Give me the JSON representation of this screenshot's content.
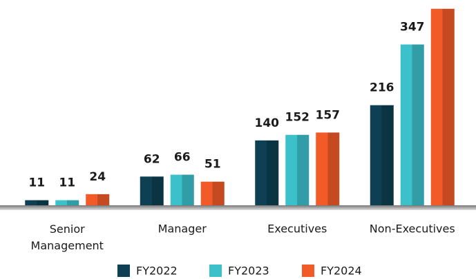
{
  "chart_data": {
    "type": "bar",
    "categories": [
      "Senior Management",
      "Manager",
      "Executives",
      "Non-Executives"
    ],
    "series": [
      {
        "name": "FY2022",
        "color": "#0e3f52",
        "values": [
          11,
          62,
          140,
          216
        ]
      },
      {
        "name": "FY2023",
        "color": "#3cc0ca",
        "values": [
          11,
          66,
          152,
          347
        ]
      },
      {
        "name": "FY2024",
        "color": "#f25a28",
        "values": [
          24,
          51,
          157,
          424
        ]
      }
    ],
    "ylim": [
      0,
      440
    ],
    "legend": "bottom"
  }
}
